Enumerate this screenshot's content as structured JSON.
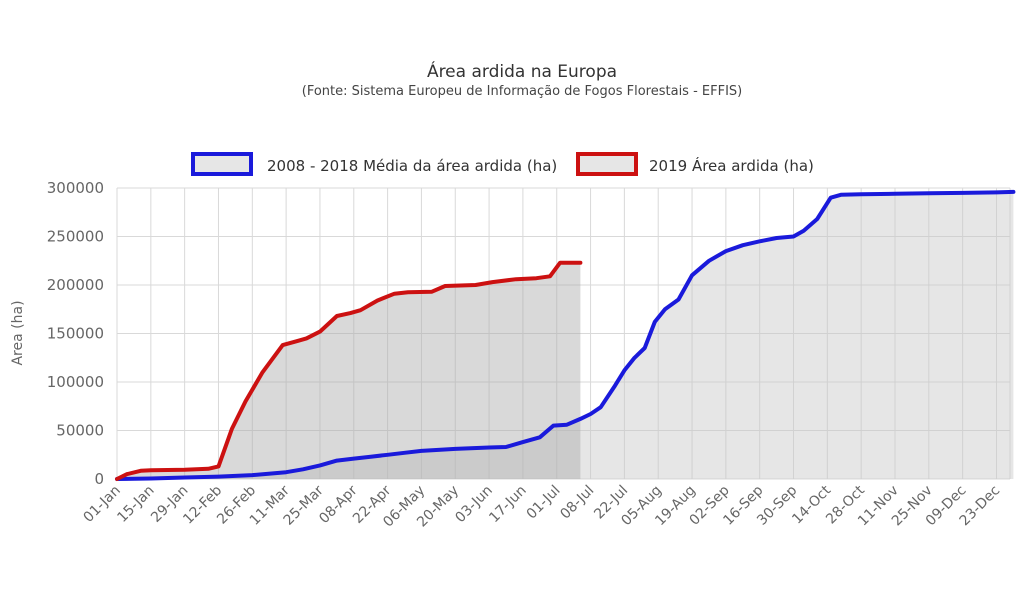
{
  "chart_data": {
    "type": "area",
    "title": "Área ardida na Europa",
    "subtitle": "(Fonte: Sistema Europeu de Informação de Fogos Florestais - EFFIS)",
    "xlabel": "",
    "ylabel": "Area (ha)",
    "ylim": [
      0,
      300000
    ],
    "yticks": [
      0,
      50000,
      100000,
      150000,
      200000,
      250000,
      300000
    ],
    "categories": [
      "01-Jan",
      "15-Jan",
      "29-Jan",
      "12-Feb",
      "26-Feb",
      "11-Mar",
      "25-Mar",
      "08-Apr",
      "22-Apr",
      "06-May",
      "20-May",
      "03-Jun",
      "17-Jun",
      "01-Jul",
      "08-Jul",
      "22-Jul",
      "05-Aug",
      "19-Aug",
      "02-Sep",
      "16-Sep",
      "30-Sep",
      "14-Oct",
      "28-Oct",
      "11-Nov",
      "25-Nov",
      "09-Dec",
      "23-Dec"
    ],
    "grid": true,
    "legend_position": "top-center",
    "series": [
      {
        "name": "2008 - 2018 Média da área ardida (ha)",
        "color": "#1a1adb",
        "points": [
          [
            0,
            0
          ],
          [
            1,
            500
          ],
          [
            2,
            1500
          ],
          [
            3,
            2500
          ],
          [
            4,
            4000
          ],
          [
            5,
            7000
          ],
          [
            5.5,
            10000
          ],
          [
            6,
            14000
          ],
          [
            6.5,
            19000
          ],
          [
            7,
            21000
          ],
          [
            7.5,
            23000
          ],
          [
            8,
            25000
          ],
          [
            8.5,
            27000
          ],
          [
            9,
            29000
          ],
          [
            10,
            31000
          ],
          [
            11,
            32500
          ],
          [
            11.5,
            33000
          ],
          [
            12,
            38000
          ],
          [
            12.5,
            43000
          ],
          [
            12.9,
            55000
          ],
          [
            13.3,
            56000
          ],
          [
            13.7,
            62000
          ],
          [
            14,
            67000
          ],
          [
            14.3,
            74000
          ],
          [
            14.7,
            95000
          ],
          [
            15,
            112000
          ],
          [
            15.3,
            125000
          ],
          [
            15.6,
            135000
          ],
          [
            15.9,
            162000
          ],
          [
            16.2,
            175000
          ],
          [
            16.6,
            185000
          ],
          [
            17,
            210000
          ],
          [
            17.5,
            225000
          ],
          [
            18,
            235000
          ],
          [
            18.5,
            241000
          ],
          [
            19,
            245000
          ],
          [
            19.5,
            248500
          ],
          [
            20,
            250000
          ],
          [
            20.3,
            256000
          ],
          [
            20.7,
            268000
          ],
          [
            21.1,
            290000
          ],
          [
            21.4,
            293000
          ],
          [
            22,
            293500
          ],
          [
            23,
            294000
          ],
          [
            24,
            294500
          ],
          [
            25,
            295000
          ],
          [
            26,
            295500
          ],
          [
            26.5,
            296000
          ]
        ]
      },
      {
        "name": "2019 Área ardida (ha)",
        "color": "#cc1111",
        "points": [
          [
            0,
            0
          ],
          [
            0.3,
            5000
          ],
          [
            0.7,
            8500
          ],
          [
            1,
            9000
          ],
          [
            2,
            9500
          ],
          [
            2.7,
            10500
          ],
          [
            3,
            13000
          ],
          [
            3.4,
            52000
          ],
          [
            3.8,
            80000
          ],
          [
            4.3,
            110000
          ],
          [
            4.9,
            138000
          ],
          [
            5.3,
            142000
          ],
          [
            5.6,
            145000
          ],
          [
            6,
            152000
          ],
          [
            6.5,
            168000
          ],
          [
            6.9,
            171000
          ],
          [
            7.2,
            174000
          ],
          [
            7.7,
            184000
          ],
          [
            8.2,
            191000
          ],
          [
            8.6,
            192500
          ],
          [
            9.3,
            193000
          ],
          [
            9.7,
            199000
          ],
          [
            10.6,
            200000
          ],
          [
            11.1,
            203000
          ],
          [
            11.8,
            206000
          ],
          [
            12.4,
            207000
          ],
          [
            12.8,
            209000
          ],
          [
            13.1,
            223000
          ],
          [
            13.7,
            223000
          ]
        ]
      }
    ]
  }
}
